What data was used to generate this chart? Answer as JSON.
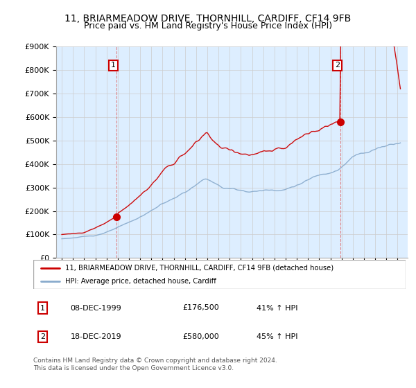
{
  "title": "11, BRIARMEADOW DRIVE, THORNHILL, CARDIFF, CF14 9FB",
  "subtitle": "Price paid vs. HM Land Registry's House Price Index (HPI)",
  "ylim": [
    0,
    900000
  ],
  "yticks": [
    0,
    100000,
    200000,
    300000,
    400000,
    500000,
    600000,
    700000,
    800000,
    900000
  ],
  "ytick_labels": [
    "£0",
    "£100K",
    "£200K",
    "£300K",
    "£400K",
    "£500K",
    "£600K",
    "£700K",
    "£800K",
    "£900K"
  ],
  "sale1_price": 176500,
  "sale1_year": 1999.92,
  "sale2_price": 580000,
  "sale2_year": 2019.92,
  "line_color_red": "#cc0000",
  "line_color_blue": "#88aacc",
  "fill_color": "#ddeeff",
  "background_color": "#ffffff",
  "grid_color": "#cccccc",
  "legend_line1": "11, BRIARMEADOW DRIVE, THORNHILL, CARDIFF, CF14 9FB (detached house)",
  "legend_line2": "HPI: Average price, detached house, Cardiff",
  "table_row1": [
    "1",
    "08-DEC-1999",
    "£176,500",
    "41% ↑ HPI"
  ],
  "table_row2": [
    "2",
    "18-DEC-2019",
    "£580,000",
    "45% ↑ HPI"
  ],
  "footnote": "Contains HM Land Registry data © Crown copyright and database right 2024.\nThis data is licensed under the Open Government Licence v3.0.",
  "title_fontsize": 10,
  "subtitle_fontsize": 9,
  "tick_fontsize": 8
}
